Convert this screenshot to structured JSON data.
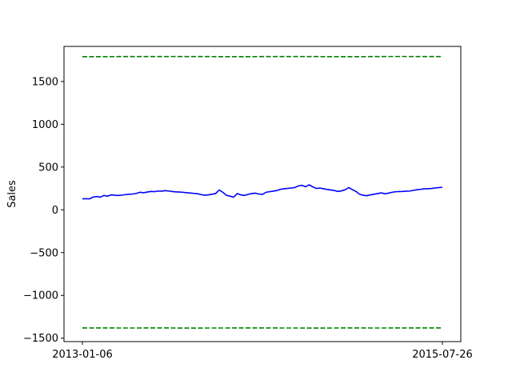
{
  "chart_data": {
    "type": "line",
    "title": "",
    "xlabel": "",
    "ylabel": "Sales",
    "grid": false,
    "legend": "none",
    "x_range": [
      "2013-01-06",
      "2015-07-26"
    ],
    "ylim": [
      -1540,
      1910
    ],
    "yticks": [
      -1500,
      -1000,
      -500,
      0,
      500,
      1000,
      1500
    ],
    "yticks_labels": [
      "−1500",
      "−1000",
      "−500",
      "0",
      "500",
      "1000",
      "1500"
    ],
    "xticks": [
      "2013-01-06",
      "2015-07-26"
    ],
    "series": [
      {
        "role": "sales",
        "color": "#0000ff",
        "style": "solid",
        "x_start": "2013-01-06",
        "x_end": "2015-07-26",
        "values": [
          128,
          130,
          128,
          150,
          155,
          148,
          168,
          160,
          175,
          170,
          168,
          172,
          178,
          182,
          185,
          192,
          205,
          200,
          208,
          215,
          212,
          220,
          218,
          224,
          220,
          214,
          210,
          208,
          205,
          200,
          196,
          192,
          188,
          178,
          170,
          175,
          182,
          190,
          232,
          205,
          170,
          160,
          148,
          190,
          175,
          168,
          180,
          190,
          195,
          185,
          180,
          205,
          212,
          218,
          225,
          240,
          246,
          250,
          255,
          260,
          280,
          286,
          270,
          292,
          268,
          250,
          255,
          245,
          238,
          232,
          225,
          215,
          222,
          235,
          260,
          236,
          215,
          182,
          170,
          165,
          175,
          182,
          190,
          198,
          188,
          195,
          205,
          212,
          214,
          215,
          218,
          220,
          228,
          236,
          240,
          246,
          246,
          250,
          255,
          260,
          262
        ]
      },
      {
        "role": "upper-bound",
        "color": "#008000",
        "style": "dashed",
        "x_start": "2013-01-06",
        "x_end": "2015-07-26",
        "values": [
          1790,
          1790,
          1791,
          1791,
          1791,
          1792,
          1791,
          1791,
          1790,
          1790,
          1791,
          1791,
          1792,
          1791,
          1790,
          1790,
          1791,
          1792,
          1792,
          1791,
          1791
        ]
      },
      {
        "role": "lower-bound",
        "color": "#008000",
        "style": "dashed",
        "x_start": "2013-01-06",
        "x_end": "2015-07-26",
        "values": [
          -1380,
          -1380,
          -1381,
          -1381,
          -1380,
          -1381,
          -1382,
          -1381,
          -1381,
          -1380,
          -1380,
          -1381,
          -1381,
          -1382,
          -1381,
          -1380,
          -1381,
          -1381,
          -1380,
          -1380,
          -1381
        ]
      }
    ]
  }
}
